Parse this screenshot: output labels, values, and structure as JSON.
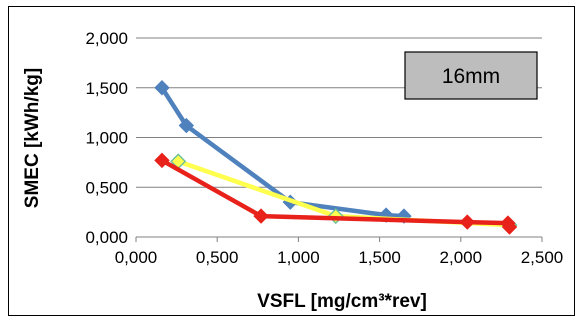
{
  "chart_data": {
    "type": "line",
    "xlabel": "VSFL [mg/cm³*rev]",
    "ylabel": "SMEC [kWh/kg]",
    "xlim": [
      0,
      2.5
    ],
    "ylim": [
      0,
      2.0
    ],
    "x_ticks": [
      "0,000",
      "0,500",
      "1,000",
      "1,500",
      "2,000",
      "2,500"
    ],
    "y_ticks": [
      "0,000",
      "0,500",
      "1,000",
      "1,500",
      "2,000"
    ],
    "x_tick_values": [
      0,
      0.5,
      1.0,
      1.5,
      2.0,
      2.5
    ],
    "y_tick_values": [
      0,
      0.5,
      1.0,
      1.5,
      2.0
    ],
    "grid": "horizontal",
    "annotation": "16mm",
    "series": [
      {
        "color": "#4f81bd",
        "marker": "diamond",
        "points": [
          [
            0.16,
            1.5
          ],
          [
            0.31,
            1.12
          ],
          [
            0.95,
            0.35
          ],
          [
            1.54,
            0.22
          ],
          [
            1.65,
            0.21
          ]
        ]
      },
      {
        "color": "#ffff4d",
        "marker": "diamond",
        "points": [
          [
            0.26,
            0.76
          ],
          [
            1.23,
            0.21
          ],
          [
            2.3,
            0.12
          ]
        ]
      },
      {
        "color": "#e8211a",
        "marker": "diamond",
        "points": [
          [
            0.16,
            0.77
          ],
          [
            0.77,
            0.21
          ],
          [
            2.04,
            0.15
          ],
          [
            2.29,
            0.14
          ],
          [
            2.3,
            0.1
          ]
        ]
      }
    ]
  }
}
